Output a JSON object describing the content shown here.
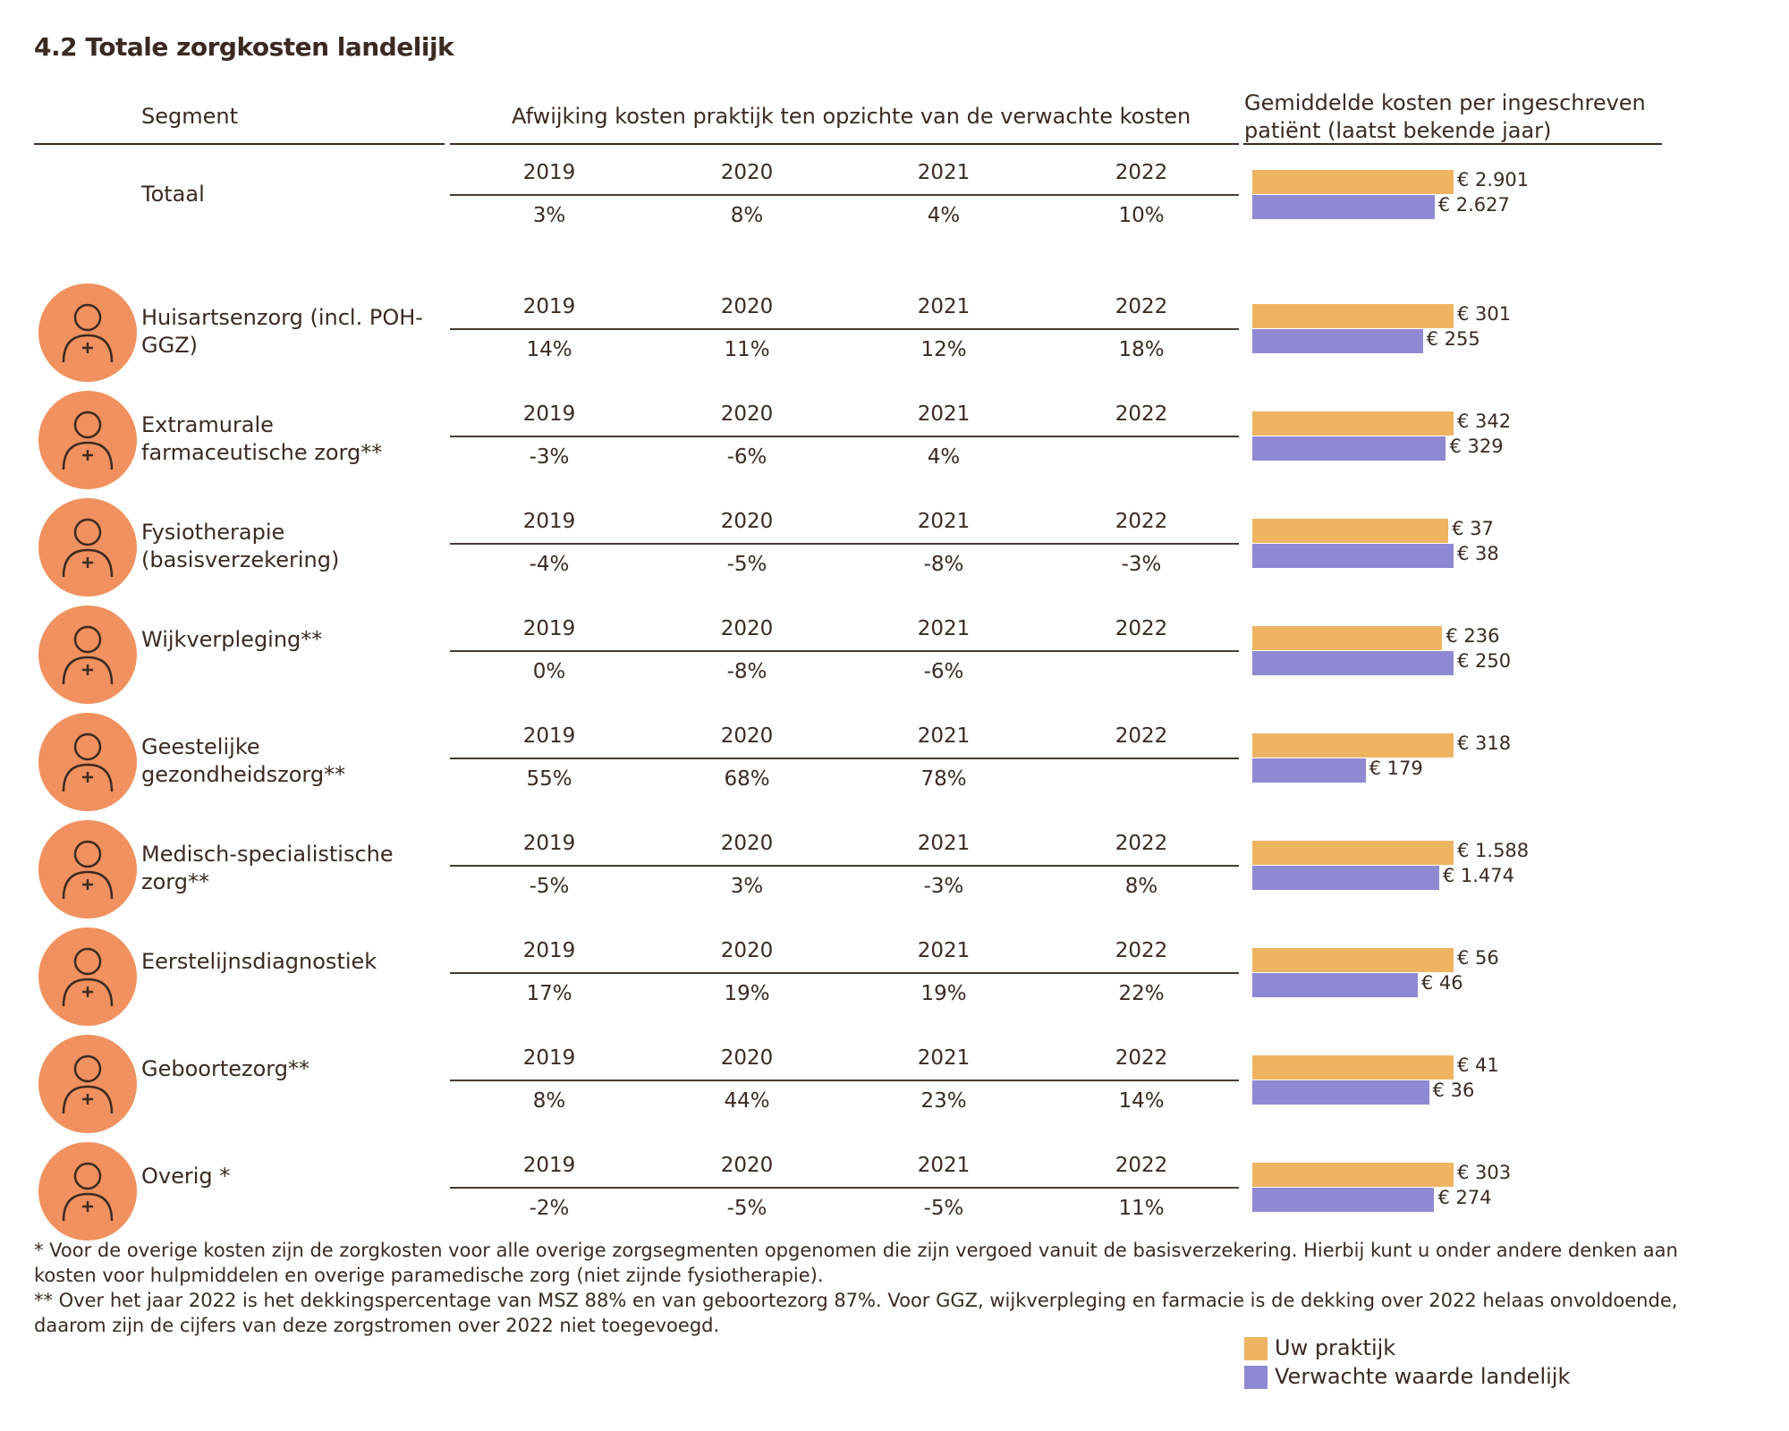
{
  "title": "4.2 Totale zorgkosten landelijk",
  "headers": {
    "segment": "Segment",
    "deviation": "Afwijking kosten praktijk ten opzichte van de verwachte kosten",
    "costs": "Gemiddelde kosten per ingeschreven patiënt (laatst bekende jaar)"
  },
  "years": [
    "2019",
    "2020",
    "2021",
    "2022"
  ],
  "legend": [
    {
      "name": "Uw praktijk",
      "color": "#efb462"
    },
    {
      "name": "Verwachte waarde landelijk",
      "color": "#8e89d2"
    }
  ],
  "rows": [
    {
      "segment": "Totaal",
      "deviations": [
        "3%",
        "8%",
        "4%",
        "10%"
      ],
      "costs": {
        "values": [
          2901,
          2627
        ],
        "value_labels": [
          "€ 2.901",
          "€ 2.627"
        ]
      }
    },
    {
      "segment": "Huisartsenzorg (incl. POH-GGZ)",
      "deviations": [
        "14%",
        "11%",
        "12%",
        "18%"
      ],
      "costs": {
        "values": [
          301,
          255
        ],
        "value_labels": [
          "€ 301",
          "€ 255"
        ]
      }
    },
    {
      "segment": "Extramurale farmaceutische zorg**",
      "deviations": [
        "-3%",
        "-6%",
        "4%",
        null
      ],
      "costs": {
        "values": [
          342,
          329
        ],
        "value_labels": [
          "€ 342",
          "€ 329"
        ]
      }
    },
    {
      "segment": "Fysiotherapie (basisverzekering)",
      "deviations": [
        "-4%",
        "-5%",
        "-8%",
        "-3%"
      ],
      "costs": {
        "values": [
          37,
          38
        ],
        "value_labels": [
          "€ 37",
          "€ 38"
        ]
      }
    },
    {
      "segment": "Wijkverpleging**",
      "deviations": [
        "0%",
        "-8%",
        "-6%",
        null
      ],
      "costs": {
        "values": [
          236,
          250
        ],
        "value_labels": [
          "€ 236",
          "€ 250"
        ]
      }
    },
    {
      "segment": "Geestelijke gezondheidszorg**",
      "deviations": [
        "55%",
        "68%",
        "78%",
        null
      ],
      "costs": {
        "values": [
          318,
          179
        ],
        "value_labels": [
          "€ 318",
          "€ 179"
        ]
      }
    },
    {
      "segment": "Medisch-specialistische zorg**",
      "deviations": [
        "-5%",
        "3%",
        "-3%",
        "8%"
      ],
      "costs": {
        "values": [
          1588,
          1474
        ],
        "value_labels": [
          "€ 1.588",
          "€ 1.474"
        ]
      }
    },
    {
      "segment": "Eerstelijnsdiagnostiek",
      "deviations": [
        "17%",
        "19%",
        "19%",
        "22%"
      ],
      "costs": {
        "values": [
          56,
          46
        ],
        "value_labels": [
          "€ 56",
          "€ 46"
        ]
      }
    },
    {
      "segment": "Geboortezorg**",
      "deviations": [
        "8%",
        "44%",
        "23%",
        "14%"
      ],
      "costs": {
        "values": [
          41,
          36
        ],
        "value_labels": [
          "€ 41",
          "€ 36"
        ]
      }
    },
    {
      "segment": "Overig *",
      "deviations": [
        "-2%",
        "-5%",
        "-5%",
        "11%"
      ],
      "costs": {
        "values": [
          303,
          274
        ],
        "value_labels": [
          "€ 303",
          "€ 274"
        ]
      }
    }
  ],
  "footnotes": [
    "* Voor de overige kosten zijn de zorgkosten voor alle overige zorgsegmenten opgenomen die zijn vergoed vanuit de basisverzekering. Hierbij kunt u onder andere denken aan kosten voor hulpmiddelen en overige paramedische zorg (niet zijnde fysiotherapie).",
    "** Over het jaar 2022 is het dekkingspercentage van MSZ 88% en van geboortezorg 87%. Voor GGZ, wijkverpleging en farmacie is de dekking over 2022 helaas onvoldoende, daarom zijn de cijfers van deze zorgstromen over 2022 niet toegevoegd."
  ]
}
